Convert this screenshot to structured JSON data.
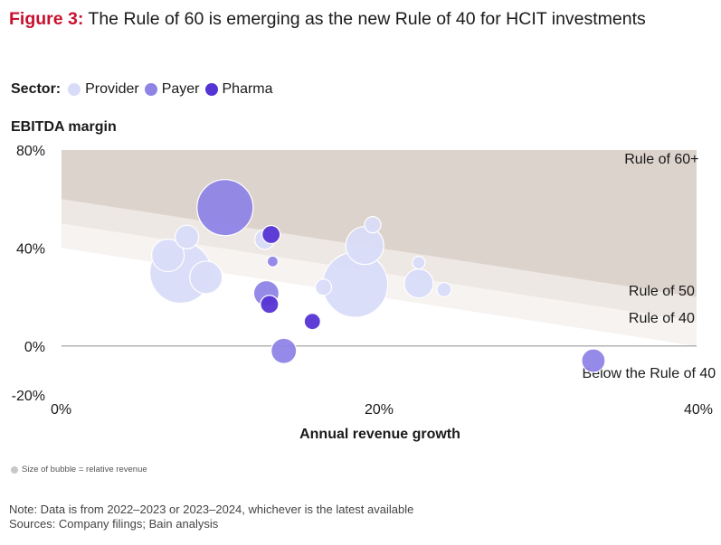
{
  "header": {
    "figure_label": "Figure 3:",
    "title": "The Rule of 60 is emerging as the new Rule of 40 for HCIT investments"
  },
  "legend": {
    "label": "Sector:",
    "items": [
      {
        "name": "Provider",
        "color": "#d9dcf8"
      },
      {
        "name": "Payer",
        "color": "#8f84e6"
      },
      {
        "name": "Pharma",
        "color": "#5534d4"
      }
    ]
  },
  "size_note": "Size of bubble = relative revenue",
  "footer": {
    "note": "Note: Data is from 2022–2023 or 2023–2024, whichever is the latest available",
    "sources": "Sources: Company filings; Bain analysis"
  },
  "colors": {
    "rule60_band": "#ddd3cd",
    "rule50_band": "#ede8e4",
    "rule40_band": "#f6f3f1",
    "zero_line": "#9a9a9a"
  },
  "chart_data": {
    "type": "scatter",
    "bubble": true,
    "ylabel": "EBITDA margin",
    "xlabel": "Annual revenue growth",
    "xlim": [
      0,
      40
    ],
    "ylim": [
      -20,
      80
    ],
    "x_ticks": [
      "0%",
      "20%",
      "40%"
    ],
    "y_ticks": [
      "80%",
      "40%",
      "0%",
      "-20%"
    ],
    "x_tick_values": [
      0,
      20,
      40
    ],
    "y_tick_values": [
      80,
      40,
      0,
      -20
    ],
    "zones": [
      {
        "label": "Rule of 60+",
        "rule": 60
      },
      {
        "label": "Rule of 50",
        "rule": 50
      },
      {
        "label": "Rule of 40",
        "rule": 40
      },
      {
        "label": "Below the Rule of 40",
        "rule": 0
      }
    ],
    "series": [
      {
        "name": "Provider",
        "color": "#d9dcf8",
        "points": [
          {
            "x": 7.5,
            "y": 30,
            "size": 34
          },
          {
            "x": 6.7,
            "y": 37,
            "size": 18
          },
          {
            "x": 9.1,
            "y": 28,
            "size": 18
          },
          {
            "x": 7.9,
            "y": 44.5,
            "size": 13
          },
          {
            "x": 12.8,
            "y": 43.5,
            "size": 11
          },
          {
            "x": 18.5,
            "y": 25,
            "size": 36
          },
          {
            "x": 19.1,
            "y": 41,
            "size": 21
          },
          {
            "x": 19.6,
            "y": 49.5,
            "size": 9
          },
          {
            "x": 16.5,
            "y": 24,
            "size": 9
          },
          {
            "x": 22.5,
            "y": 25.5,
            "size": 16
          },
          {
            "x": 22.5,
            "y": 34,
            "size": 7
          },
          {
            "x": 24.1,
            "y": 23,
            "size": 8
          }
        ]
      },
      {
        "name": "Payer",
        "color": "#8f84e6",
        "points": [
          {
            "x": 10.3,
            "y": 56.5,
            "size": 31
          },
          {
            "x": 12.9,
            "y": 21.5,
            "size": 14
          },
          {
            "x": 14.0,
            "y": -2,
            "size": 14
          },
          {
            "x": 13.3,
            "y": 34.5,
            "size": 6
          },
          {
            "x": 33.5,
            "y": -6,
            "size": 13
          }
        ]
      },
      {
        "name": "Pharma",
        "color": "#5534d4",
        "points": [
          {
            "x": 13.2,
            "y": 45.5,
            "size": 10
          },
          {
            "x": 13.1,
            "y": 17,
            "size": 10
          },
          {
            "x": 15.8,
            "y": 10,
            "size": 9
          }
        ]
      }
    ]
  }
}
